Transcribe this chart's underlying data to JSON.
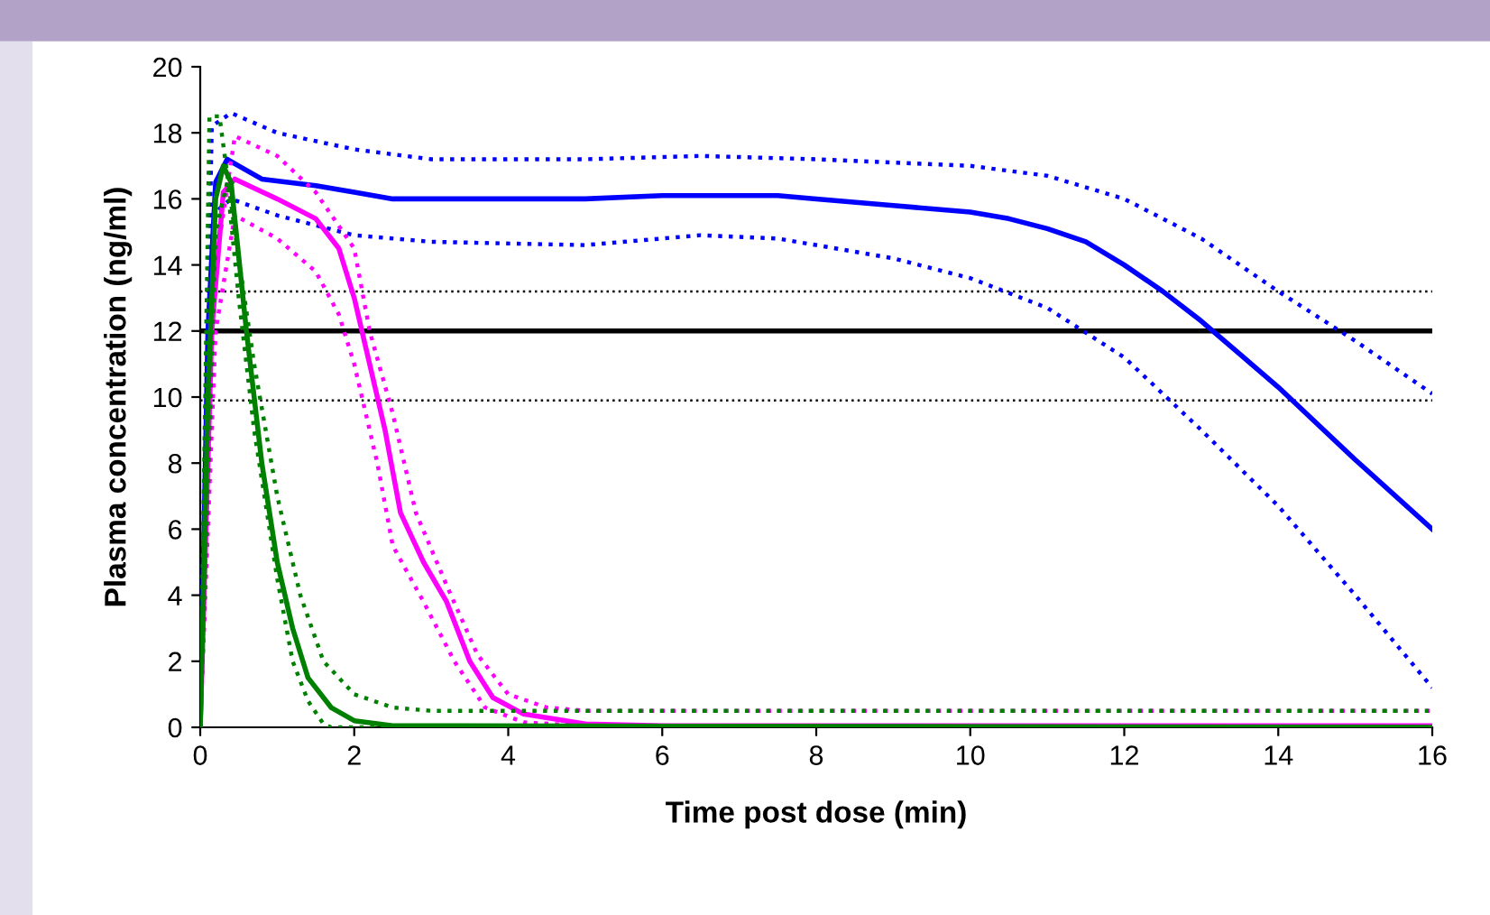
{
  "chart_data": {
    "type": "line",
    "xlabel": "Time post dose (min)",
    "ylabel": "Plasma concentration (ng/ml)",
    "xlim": [
      0,
      16
    ],
    "ylim": [
      0,
      20
    ],
    "xticks": [
      0,
      2,
      4,
      6,
      8,
      10,
      12,
      14,
      16
    ],
    "yticks": [
      0,
      2,
      4,
      6,
      8,
      10,
      12,
      14,
      16,
      18,
      20
    ],
    "grid": false,
    "legend": false,
    "marker": "none",
    "series": [
      {
        "color": "#0000ff",
        "line_style": "solid",
        "x": [
          0,
          0.1,
          0.2,
          0.35,
          0.5,
          0.8,
          1.5,
          2,
          2.5,
          4,
          5,
          6,
          7.5,
          8,
          9,
          10,
          10.5,
          11,
          11.5,
          12,
          12.5,
          13,
          13.5,
          14,
          15,
          16
        ],
        "values": [
          0,
          12,
          16.5,
          17.2,
          17,
          16.6,
          16.4,
          16.2,
          16.0,
          16.0,
          16.0,
          16.1,
          16.1,
          16.0,
          15.8,
          15.6,
          15.4,
          15.1,
          14.7,
          14.0,
          13.2,
          12.3,
          11.3,
          10.3,
          8.1,
          6.0
        ]
      },
      {
        "color": "#0000ff",
        "line_style": "dotted",
        "x": [
          0,
          0.15,
          0.4,
          1,
          2,
          3,
          5,
          6.5,
          8,
          9,
          10,
          11,
          12,
          13,
          14,
          15,
          16
        ],
        "values": [
          0,
          18.2,
          18.6,
          18.0,
          17.5,
          17.2,
          17.2,
          17.3,
          17.2,
          17.1,
          17.0,
          16.7,
          16.0,
          14.8,
          13.2,
          11.7,
          10.1
        ]
      },
      {
        "color": "#0000ff",
        "line_style": "dotted",
        "x": [
          0,
          0.15,
          0.4,
          1,
          2,
          3,
          5,
          6.5,
          7.5,
          9,
          10,
          11,
          12,
          13,
          14,
          15,
          16
        ],
        "values": [
          0,
          15.5,
          16.0,
          15.5,
          14.9,
          14.7,
          14.6,
          14.9,
          14.8,
          14.2,
          13.6,
          12.7,
          11.2,
          9.0,
          6.7,
          4.0,
          1.2
        ]
      },
      {
        "color": "#ff00ff",
        "line_style": "solid",
        "x": [
          0,
          0.15,
          0.3,
          0.45,
          1,
          1.5,
          1.8,
          2,
          2.15,
          2.4,
          2.6,
          2.9,
          3.2,
          3.5,
          3.8,
          4.2,
          5,
          6,
          16
        ],
        "values": [
          0,
          12,
          16.2,
          16.6,
          16.0,
          15.4,
          14.5,
          13,
          11.5,
          9,
          6.5,
          5.0,
          3.8,
          2.0,
          0.9,
          0.4,
          0.1,
          0.05,
          0.05
        ]
      },
      {
        "color": "#ff00ff",
        "line_style": "dotted",
        "x": [
          0,
          0.2,
          0.45,
          1,
          1.5,
          2,
          2.2,
          2.5,
          2.8,
          3.2,
          3.6,
          4,
          4.5,
          5,
          16
        ],
        "values": [
          0,
          14,
          17.9,
          17.3,
          16.2,
          14.5,
          12,
          9.5,
          6.5,
          4.3,
          2.2,
          1.0,
          0.6,
          0.5,
          0.5
        ]
      },
      {
        "color": "#ff00ff",
        "line_style": "dotted",
        "x": [
          0,
          0.2,
          0.45,
          1,
          1.5,
          1.8,
          2,
          2.3,
          2.5,
          2.9,
          3.3,
          3.7,
          4.2,
          5,
          16
        ],
        "values": [
          0,
          12,
          15.5,
          14.8,
          13.8,
          12.5,
          11,
          8,
          5.5,
          3.8,
          2.0,
          0.6,
          0.15,
          0.05,
          0.05
        ]
      },
      {
        "color": "#008000",
        "line_style": "solid",
        "x": [
          0,
          0.1,
          0.2,
          0.3,
          0.4,
          0.6,
          0.8,
          1,
          1.2,
          1.4,
          1.7,
          2,
          2.5,
          16
        ],
        "values": [
          0,
          10,
          16,
          17.0,
          16.5,
          12,
          8,
          5,
          3,
          1.5,
          0.6,
          0.2,
          0.05,
          0
        ]
      },
      {
        "color": "#008000",
        "line_style": "dotted",
        "x": [
          0,
          0.12,
          0.25,
          0.45,
          0.7,
          1,
          1.3,
          1.6,
          2,
          2.5,
          3,
          16
        ],
        "values": [
          0,
          18.5,
          18.5,
          15,
          11,
          7,
          4,
          2,
          1,
          0.6,
          0.5,
          0.5
        ]
      },
      {
        "color": "#008000",
        "line_style": "dotted",
        "x": [
          0,
          0.2,
          0.35,
          0.5,
          0.7,
          1,
          1.2,
          1.4,
          1.6,
          1.7,
          16
        ],
        "values": [
          0,
          15,
          16.5,
          13,
          9,
          4.5,
          2,
          0.8,
          0.1,
          0,
          0
        ]
      }
    ],
    "ref_lines": [
      {
        "axis": "y",
        "value": 12,
        "color": "#000000",
        "line_style": "solid"
      },
      {
        "axis": "y",
        "value": 13.2,
        "color": "#000000",
        "line_style": "dotted"
      },
      {
        "axis": "y",
        "value": 9.9,
        "color": "#000000",
        "line_style": "dotted"
      }
    ]
  }
}
